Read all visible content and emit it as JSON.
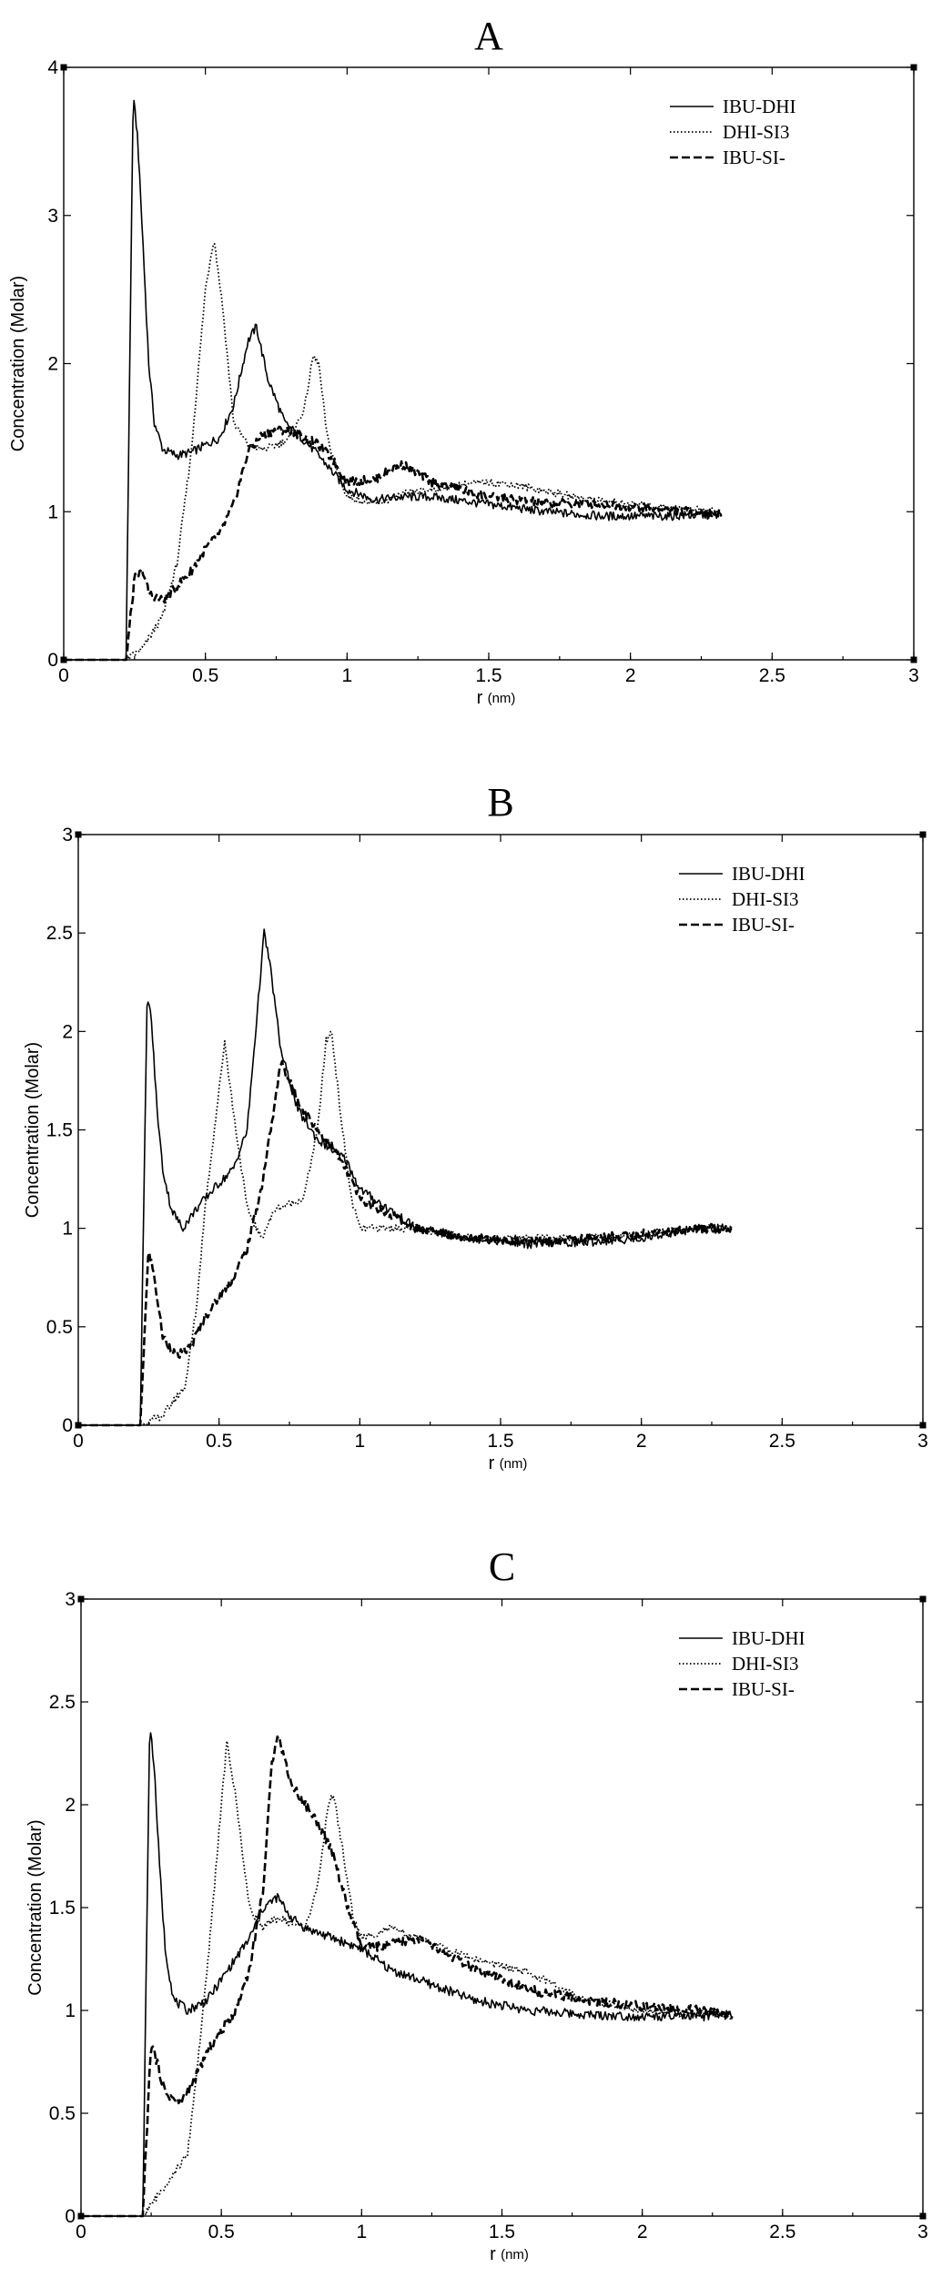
{
  "chart_data": [
    {
      "type": "line",
      "title": "A",
      "xlabel": "r",
      "xunit": "(nm)",
      "ylabel": "Concentration (Molar)",
      "xlim": [
        0,
        3
      ],
      "ylim": [
        0,
        4
      ],
      "xticks": [
        "0",
        "0.5",
        "1",
        "1.5",
        "2",
        "2.5",
        "3"
      ],
      "yticks": [
        "0",
        "1",
        "2",
        "3",
        "4"
      ],
      "legend_position": "top-right",
      "series": [
        {
          "name": "IBU-DHI",
          "style": "solid",
          "x": [
            0,
            0.22,
            0.245,
            0.26,
            0.28,
            0.3,
            0.32,
            0.35,
            0.4,
            0.45,
            0.5,
            0.55,
            0.6,
            0.65,
            0.68,
            0.72,
            0.78,
            0.85,
            0.9,
            1.0,
            1.1,
            1.2,
            1.3,
            1.5,
            1.7,
            1.9,
            2.1,
            2.32
          ],
          "y": [
            0,
            0,
            3.8,
            3.55,
            2.8,
            2.0,
            1.6,
            1.42,
            1.38,
            1.4,
            1.45,
            1.5,
            1.72,
            2.15,
            2.25,
            1.9,
            1.6,
            1.48,
            1.38,
            1.15,
            1.08,
            1.1,
            1.1,
            1.05,
            1.0,
            0.97,
            0.97,
            0.98
          ]
        },
        {
          "name": "DHI-SI3",
          "style": "dotted",
          "x": [
            0,
            0.22,
            0.28,
            0.35,
            0.4,
            0.45,
            0.5,
            0.53,
            0.56,
            0.6,
            0.65,
            0.7,
            0.75,
            0.8,
            0.85,
            0.88,
            0.9,
            0.93,
            0.97,
            1.0,
            1.1,
            1.2,
            1.3,
            1.4,
            1.5,
            1.6,
            1.8,
            2.0,
            2.2,
            2.32
          ],
          "y": [
            0,
            0,
            0.08,
            0.3,
            0.65,
            1.4,
            2.5,
            2.85,
            2.4,
            1.6,
            1.45,
            1.42,
            1.45,
            1.5,
            1.7,
            2.05,
            2.0,
            1.5,
            1.25,
            1.1,
            1.05,
            1.12,
            1.15,
            1.18,
            1.2,
            1.18,
            1.1,
            1.05,
            1.02,
            1.0
          ]
        },
        {
          "name": "IBU-SI-",
          "style": "dashed",
          "x": [
            0,
            0.22,
            0.25,
            0.28,
            0.3,
            0.35,
            0.4,
            0.45,
            0.5,
            0.55,
            0.6,
            0.65,
            0.7,
            0.75,
            0.8,
            0.85,
            0.9,
            0.95,
            1.0,
            1.1,
            1.15,
            1.2,
            1.3,
            1.5,
            1.7,
            1.9,
            2.1,
            2.32
          ],
          "y": [
            0,
            0,
            0.55,
            0.6,
            0.45,
            0.4,
            0.5,
            0.6,
            0.75,
            0.85,
            1.05,
            1.4,
            1.52,
            1.55,
            1.55,
            1.5,
            1.45,
            1.35,
            1.2,
            1.22,
            1.28,
            1.32,
            1.2,
            1.1,
            1.06,
            1.05,
            1.02,
            0.98
          ]
        }
      ]
    },
    {
      "type": "line",
      "title": "B",
      "xlabel": "r",
      "xunit": "(nm)",
      "ylabel": "Concentration (Molar)",
      "xlim": [
        0,
        3
      ],
      "ylim": [
        0,
        3
      ],
      "xticks": [
        "0",
        "0.5",
        "1",
        "1.5",
        "2",
        "2.5",
        "3"
      ],
      "yticks": [
        "0",
        "0.5",
        "1",
        "1.5",
        "2",
        "2.5",
        "3"
      ],
      "legend_position": "top-right",
      "series": [
        {
          "name": "IBU-DHI",
          "style": "solid",
          "x": [
            0,
            0.22,
            0.245,
            0.26,
            0.28,
            0.3,
            0.33,
            0.37,
            0.42,
            0.48,
            0.55,
            0.6,
            0.63,
            0.66,
            0.68,
            0.72,
            0.78,
            0.85,
            0.9,
            0.95,
            1.0,
            1.2,
            1.4,
            1.6,
            1.8,
            2.0,
            2.2,
            2.32
          ],
          "y": [
            0,
            0,
            2.2,
            2.05,
            1.6,
            1.3,
            1.1,
            1.0,
            1.1,
            1.2,
            1.3,
            1.5,
            2.0,
            2.5,
            2.35,
            1.9,
            1.6,
            1.45,
            1.4,
            1.35,
            1.2,
            1.0,
            0.95,
            0.92,
            0.93,
            0.95,
            1.0,
            1.0
          ]
        },
        {
          "name": "DHI-SI3",
          "style": "dotted",
          "x": [
            0,
            0.22,
            0.3,
            0.38,
            0.42,
            0.45,
            0.5,
            0.52,
            0.55,
            0.6,
            0.65,
            0.7,
            0.8,
            0.85,
            0.88,
            0.9,
            0.93,
            0.97,
            1.0,
            1.2,
            1.4,
            1.6,
            1.8,
            2.0,
            2.2,
            2.32
          ],
          "y": [
            0,
            0,
            0.05,
            0.2,
            0.6,
            1.1,
            1.7,
            1.95,
            1.6,
            1.1,
            0.95,
            1.1,
            1.15,
            1.5,
            1.95,
            2.0,
            1.6,
            1.15,
            1.0,
            1.0,
            0.95,
            0.95,
            0.95,
            0.97,
            1.0,
            1.0
          ]
        },
        {
          "name": "IBU-SI-",
          "style": "dashed",
          "x": [
            0,
            0.22,
            0.25,
            0.27,
            0.3,
            0.35,
            0.4,
            0.45,
            0.5,
            0.55,
            0.6,
            0.65,
            0.7,
            0.72,
            0.75,
            0.8,
            0.85,
            0.9,
            0.95,
            1.0,
            1.2,
            1.4,
            1.6,
            1.8,
            2.0,
            2.2,
            2.32
          ],
          "y": [
            0,
            0,
            0.9,
            0.75,
            0.45,
            0.35,
            0.4,
            0.55,
            0.65,
            0.75,
            0.9,
            1.2,
            1.65,
            1.85,
            1.75,
            1.6,
            1.5,
            1.42,
            1.3,
            1.15,
            1.0,
            0.95,
            0.93,
            0.95,
            0.97,
            1.0,
            1.0
          ]
        }
      ]
    },
    {
      "type": "line",
      "title": "C",
      "xlabel": "r",
      "xunit": "(nm)",
      "ylabel": "Concentration (Molar)",
      "xlim": [
        0,
        3
      ],
      "ylim": [
        0,
        3
      ],
      "xticks": [
        "0",
        "0.5",
        "1",
        "1.5",
        "2",
        "2.5",
        "3"
      ],
      "yticks": [
        "0",
        "0.5",
        "1",
        "1.5",
        "2",
        "2.5",
        "3"
      ],
      "legend_position": "top-right",
      "series": [
        {
          "name": "IBU-DHI",
          "style": "solid",
          "x": [
            0,
            0.22,
            0.245,
            0.26,
            0.28,
            0.3,
            0.33,
            0.38,
            0.45,
            0.5,
            0.55,
            0.6,
            0.65,
            0.7,
            0.75,
            0.8,
            0.9,
            1.0,
            1.1,
            1.2,
            1.4,
            1.6,
            1.8,
            2.0,
            2.2,
            2.32
          ],
          "y": [
            0,
            0,
            2.4,
            2.2,
            1.7,
            1.3,
            1.05,
            1.0,
            1.05,
            1.15,
            1.25,
            1.35,
            1.5,
            1.55,
            1.45,
            1.4,
            1.35,
            1.3,
            1.2,
            1.15,
            1.05,
            1.0,
            0.98,
            0.97,
            0.97,
            0.98
          ]
        },
        {
          "name": "DHI-SI3",
          "style": "dotted",
          "x": [
            0,
            0.22,
            0.3,
            0.38,
            0.42,
            0.45,
            0.5,
            0.52,
            0.55,
            0.6,
            0.65,
            0.7,
            0.8,
            0.85,
            0.88,
            0.9,
            0.93,
            0.97,
            1.0,
            1.1,
            1.2,
            1.4,
            1.6,
            1.8,
            2.0,
            2.2,
            2.32
          ],
          "y": [
            0,
            0,
            0.15,
            0.3,
            0.8,
            1.2,
            2.0,
            2.3,
            2.05,
            1.5,
            1.4,
            1.45,
            1.4,
            1.65,
            2.0,
            2.05,
            1.8,
            1.45,
            1.35,
            1.4,
            1.35,
            1.25,
            1.18,
            1.05,
            1.0,
            0.98,
            0.97
          ]
        },
        {
          "name": "IBU-SI-",
          "style": "dashed",
          "x": [
            0,
            0.22,
            0.25,
            0.27,
            0.3,
            0.35,
            0.4,
            0.45,
            0.5,
            0.55,
            0.6,
            0.65,
            0.68,
            0.7,
            0.72,
            0.75,
            0.8,
            0.85,
            0.9,
            0.95,
            1.0,
            1.1,
            1.2,
            1.4,
            1.6,
            1.8,
            2.0,
            2.2,
            2.32
          ],
          "y": [
            0,
            0,
            0.85,
            0.75,
            0.6,
            0.55,
            0.65,
            0.8,
            0.9,
            1.0,
            1.2,
            1.6,
            2.2,
            2.35,
            2.25,
            2.1,
            2.0,
            1.9,
            1.75,
            1.5,
            1.3,
            1.32,
            1.35,
            1.2,
            1.1,
            1.05,
            1.02,
            1.0,
            0.98
          ]
        }
      ]
    }
  ]
}
